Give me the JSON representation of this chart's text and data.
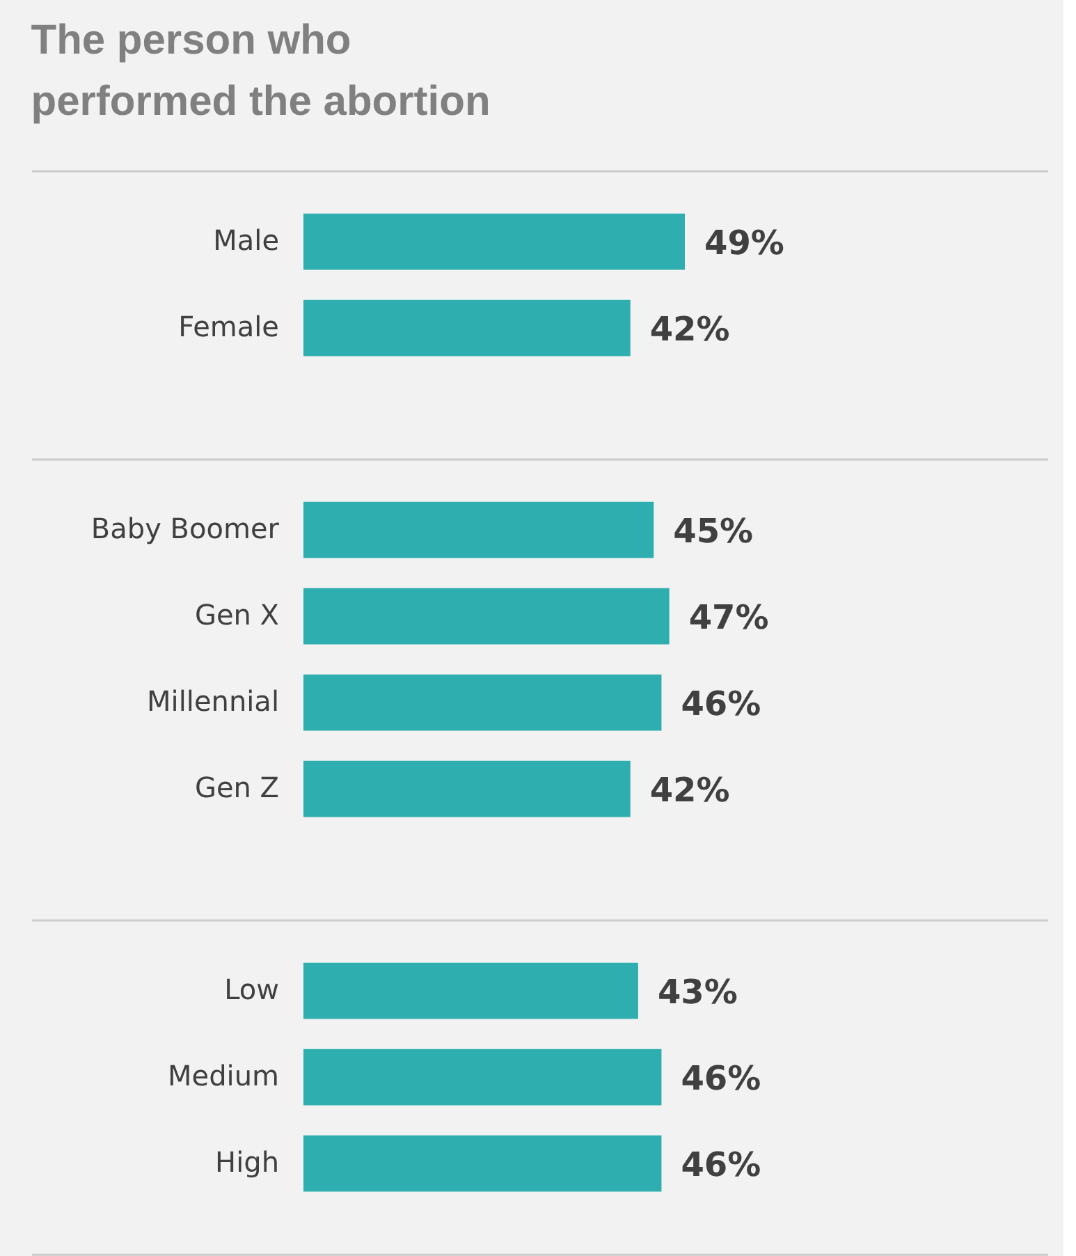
{
  "chart_data": [
    {
      "type": "bar",
      "orientation": "horizontal",
      "title": "The person who performed the abortion",
      "categories": [
        "Male",
        "Female"
      ],
      "values": [
        49,
        42
      ],
      "value_labels": [
        "49%",
        "42%"
      ],
      "color": "#2eaeae"
    },
    {
      "type": "bar",
      "orientation": "horizontal",
      "categories": [
        "Baby Boomer",
        "Gen X",
        "Millennial",
        "Gen Z"
      ],
      "values": [
        45,
        47,
        46,
        42
      ],
      "value_labels": [
        "45%",
        "47%",
        "46%",
        "42%"
      ],
      "color": "#2eaeae"
    },
    {
      "type": "bar",
      "orientation": "horizontal",
      "categories": [
        "Low",
        "Medium",
        "High"
      ],
      "values": [
        43,
        46,
        46
      ],
      "value_labels": [
        "43%",
        "46%",
        "46%"
      ],
      "color": "#2eaeae"
    }
  ]
}
